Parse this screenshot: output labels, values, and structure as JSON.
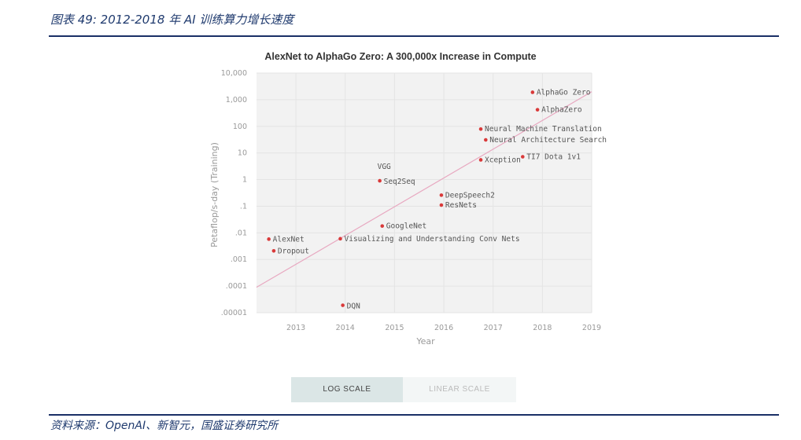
{
  "figure": {
    "caption": "图表 49: 2012-2018 年 AI 训练算力增长速度",
    "source": "资料来源：OpenAI、新智元，国盛证券研究所"
  },
  "controls": {
    "log_label": "LOG SCALE",
    "linear_label": "LINEAR SCALE"
  },
  "colors": {
    "point": "#d93a3a",
    "trend": "#e8a8c0",
    "grid": "#e4e4e4",
    "plot_bg": "#f2f2f2"
  },
  "chart_data": {
    "type": "scatter",
    "title": "AlexNet to AlphaGo Zero: A 300,000x Increase in Compute",
    "xlabel": "Year",
    "ylabel": "Petaflop/s-day (Training)",
    "xlim": [
      2012.2,
      2019
    ],
    "ylim": [
      1e-05,
      10000
    ],
    "yscale": "log",
    "grid": true,
    "x_ticks": [
      "2013",
      "2014",
      "2015",
      "2016",
      "2017",
      "2018",
      "2019"
    ],
    "y_ticks": [
      "10,000",
      "1,000",
      "100",
      "10",
      "1",
      ".1",
      ".01",
      ".001",
      ".0001",
      ".00001"
    ],
    "points": [
      {
        "label": "AlexNet",
        "x": 2012.45,
        "y": 0.0058
      },
      {
        "label": "Dropout",
        "x": 2012.55,
        "y": 0.0021
      },
      {
        "label": "Visualizing and Understanding Conv Nets",
        "x": 2013.9,
        "y": 0.006
      },
      {
        "label": "DQN",
        "x": 2013.95,
        "y": 1.9e-05
      },
      {
        "label": "VGG",
        "x": 2014.7,
        "y": 0.9
      },
      {
        "label": "Seq2Seq",
        "x": 2014.7,
        "y": 0.9
      },
      {
        "label": "GoogleNet",
        "x": 2014.75,
        "y": 0.018
      },
      {
        "label": "DeepSpeech2",
        "x": 2015.95,
        "y": 0.26
      },
      {
        "label": "ResNets",
        "x": 2015.95,
        "y": 0.11
      },
      {
        "label": "Neural Machine Translation",
        "x": 2016.75,
        "y": 79
      },
      {
        "label": "Neural Architecture Search",
        "x": 2016.85,
        "y": 31
      },
      {
        "label": "Xception",
        "x": 2016.75,
        "y": 5.5
      },
      {
        "label": "TI7 Dota 1v1",
        "x": 2017.6,
        "y": 7.2
      },
      {
        "label": "AlphaGo Zero",
        "x": 2017.8,
        "y": 1900
      },
      {
        "label": "AlphaZero",
        "x": 2017.9,
        "y": 420
      }
    ],
    "trend_line": {
      "x": [
        2012.2,
        2019
      ],
      "y": [
        9e-05,
        2000
      ]
    }
  }
}
